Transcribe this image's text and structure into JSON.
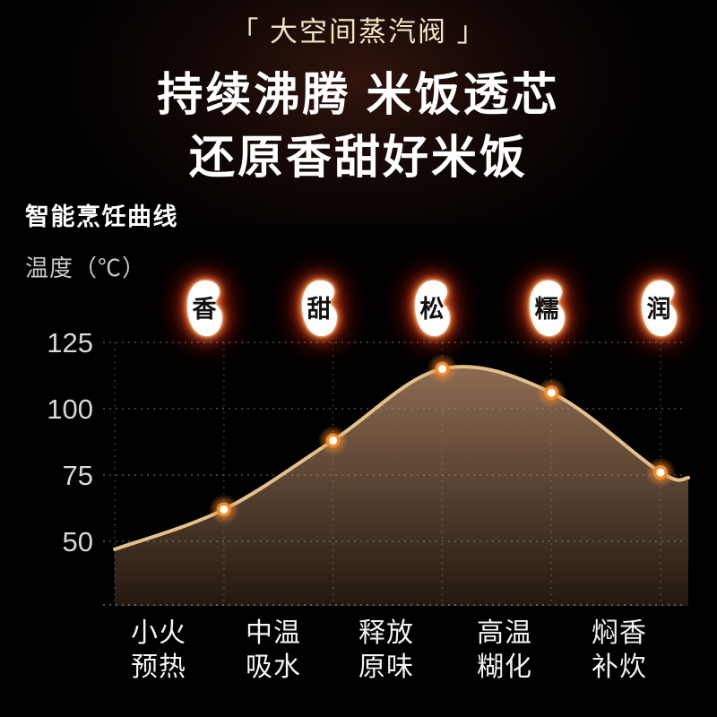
{
  "badge": {
    "text": "「 大空间蒸汽阀 」"
  },
  "headline": {
    "line1": "持续沸腾 米饭透芯",
    "line2": "还原香甜好米饭"
  },
  "section": {
    "title": "智能烹饪曲线",
    "y_axis_label": "温度（℃）"
  },
  "grains": [
    {
      "char": "香"
    },
    {
      "char": "甜"
    },
    {
      "char": "松"
    },
    {
      "char": "糯"
    },
    {
      "char": "润"
    }
  ],
  "stages": [
    {
      "line1": "小火",
      "line2": "预热"
    },
    {
      "line1": "中温",
      "line2": "吸水"
    },
    {
      "line1": "释放",
      "line2": "原味"
    },
    {
      "line1": "高温",
      "line2": "糊化"
    },
    {
      "line1": "焖香",
      "line2": "补炊"
    }
  ],
  "chart_data": {
    "type": "line",
    "title": "智能烹饪曲线",
    "ylabel": "温度（℃）",
    "y_ticks": [
      125,
      100,
      75,
      50
    ],
    "ylim": [
      25,
      135
    ],
    "grid": "dotted",
    "legend": "none",
    "categories": [
      "小火预热",
      "中温吸水",
      "释放原味",
      "高温糊化",
      "焖香补炊"
    ],
    "series": [
      {
        "name": "温度",
        "values": [
          62,
          88,
          115,
          106,
          76
        ]
      }
    ],
    "curve_start_value": 47,
    "curve_end_value": 74,
    "stage_grain_labels": [
      "香",
      "甜",
      "松",
      "糯",
      "润"
    ],
    "line_color": "#e3c08c",
    "point_color": "#f08a2c",
    "point_core_color": "#fffef8",
    "tick_label_color": "#d8d8d8",
    "fill_gradient_top": "#8d6a52",
    "fill_gradient_mid": "#5d4634",
    "fill_gradient_bottom": "#241810"
  }
}
